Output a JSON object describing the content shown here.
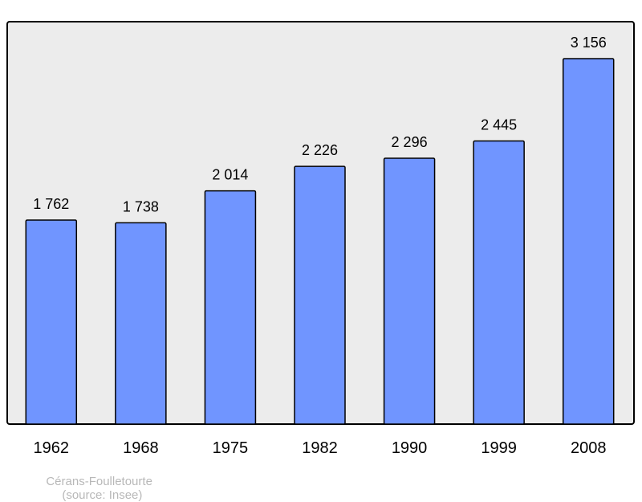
{
  "chart_data": {
    "type": "bar",
    "title": "",
    "xlabel": "",
    "ylabel": "",
    "categories": [
      "1962",
      "1968",
      "1975",
      "1982",
      "1990",
      "1999",
      "2008"
    ],
    "values": [
      1762,
      1738,
      2014,
      2226,
      2296,
      2445,
      3156
    ],
    "data_labels": [
      "1 762",
      "1 738",
      "2 014",
      "2 226",
      "2 296",
      "2 445",
      "3 156"
    ],
    "ylim": [
      0,
      3475
    ],
    "grid": false,
    "legend": "none",
    "colors": {
      "bar": "#7095ff",
      "plot_background": "#ececec",
      "frame": "#000000",
      "footer_text": "#b8b8b8"
    }
  },
  "footer": {
    "place": "Cérans-Foulletourte",
    "source": "(source: Insee)"
  }
}
